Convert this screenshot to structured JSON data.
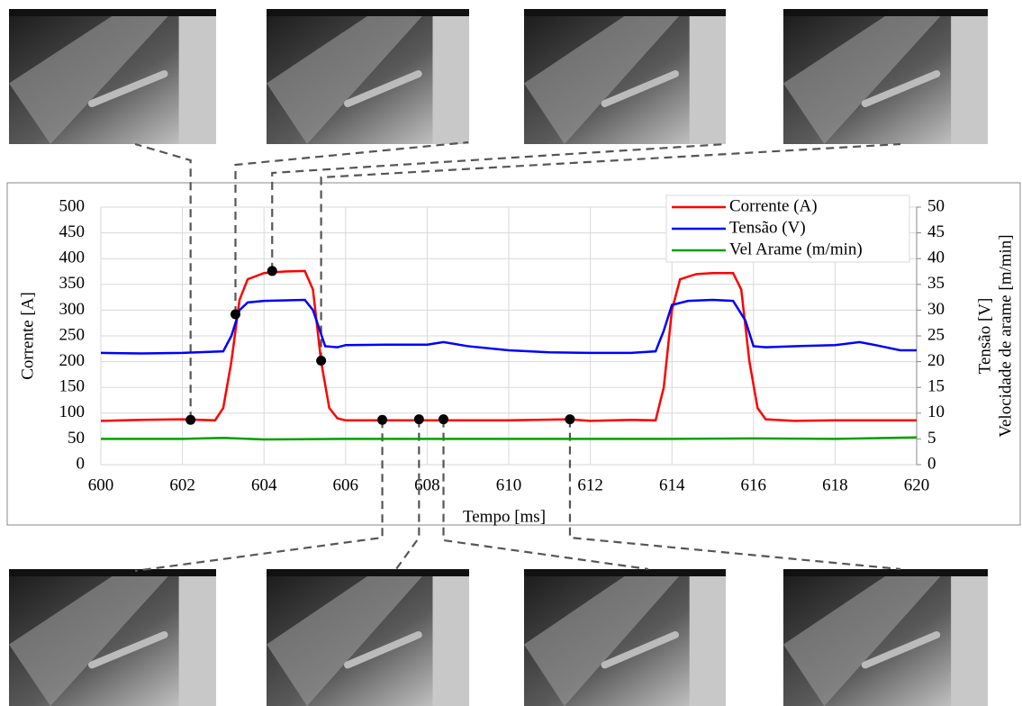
{
  "chart_data": {
    "type": "line",
    "x_label": "Tempo [ms]",
    "y_label": "Corrente [A]",
    "y2_label": [
      "Tensão [V]",
      "Velocidade de arame [m/min]"
    ],
    "xlim": [
      600,
      620
    ],
    "xticks": [
      600,
      602,
      604,
      606,
      608,
      610,
      612,
      614,
      616,
      618,
      620
    ],
    "ylim": [
      0,
      500
    ],
    "yticks": [
      0,
      50,
      100,
      150,
      200,
      250,
      300,
      350,
      400,
      450,
      500
    ],
    "y2lim": [
      0,
      50
    ],
    "y2ticks": [
      0,
      5,
      10,
      15,
      20,
      25,
      30,
      35,
      40,
      45,
      50
    ],
    "grid": true,
    "legend": "upper right",
    "series": [
      {
        "name": "Corrente (A)",
        "color": "#ff0000",
        "x": [
          600,
          601,
          602,
          602.8,
          603,
          603.2,
          603.4,
          603.6,
          604,
          604.5,
          605,
          605.2,
          605.4,
          605.6,
          605.8,
          606,
          608,
          610,
          611.5,
          612,
          613,
          613.6,
          613.8,
          614,
          614.2,
          614.6,
          615,
          615.5,
          615.7,
          615.9,
          616.1,
          616.3,
          617,
          618,
          619,
          620
        ],
        "values": [
          85,
          87,
          88,
          86,
          110,
          200,
          320,
          360,
          372,
          375,
          376,
          340,
          200,
          110,
          90,
          86,
          86,
          86,
          88,
          85,
          87,
          86,
          150,
          300,
          360,
          370,
          372,
          372,
          340,
          200,
          110,
          88,
          85,
          86,
          86,
          86
        ]
      },
      {
        "name": "Tensão (V)",
        "color": "#0000ff",
        "axis": "y2",
        "x": [
          600,
          601,
          602,
          603,
          603.2,
          603.4,
          603.6,
          604,
          605,
          605.2,
          605.5,
          605.8,
          606,
          607,
          608,
          608.4,
          609,
          610,
          611,
          612,
          613,
          613.6,
          613.8,
          614,
          614.4,
          615,
          615.5,
          615.8,
          616,
          616.3,
          617,
          618,
          618.6,
          619,
          619.6,
          620
        ],
        "values": [
          21.7,
          21.6,
          21.7,
          22,
          25,
          30,
          31.5,
          31.8,
          32,
          30,
          23,
          22.8,
          23.2,
          23.3,
          23.3,
          23.8,
          23,
          22.2,
          21.8,
          21.7,
          21.7,
          22,
          26,
          31,
          31.8,
          32,
          31.8,
          28,
          23,
          22.8,
          23,
          23.2,
          23.8,
          23.2,
          22.2,
          22.2
        ]
      },
      {
        "name": "Vel Arame (m/min)",
        "color": "#00a000",
        "axis": "y2",
        "x": [
          600,
          601,
          602,
          603,
          604,
          606,
          610,
          614,
          616,
          618,
          620
        ],
        "values": [
          5,
          5,
          5,
          5.2,
          4.9,
          5,
          5,
          5,
          5.1,
          5,
          5.3
        ]
      }
    ],
    "markers": {
      "x": [
        602.2,
        603.3,
        604.2,
        605.4,
        606.9,
        607.8,
        608.4,
        611.5
      ],
      "values": [
        87,
        292,
        376,
        202,
        87,
        88,
        88,
        88
      ]
    }
  }
}
